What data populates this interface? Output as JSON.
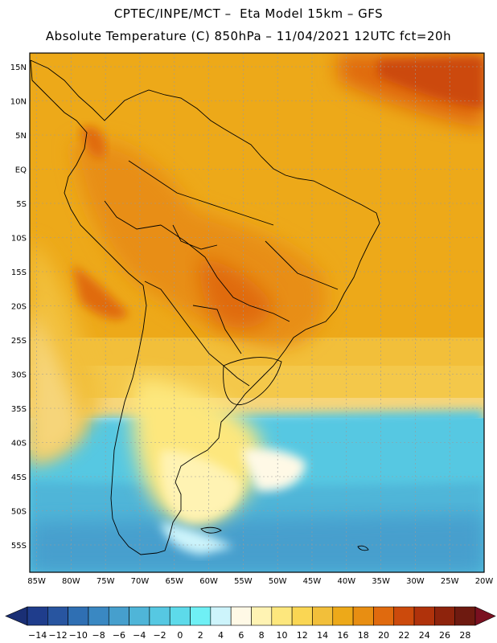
{
  "header": {
    "line1": "CPTEC/INPE/MCT –  Eta Model 15km – GFS",
    "line2": "Absolute Temperature (C) 850hPa – 11/04/2021 12UTC fct=20h"
  },
  "map": {
    "lon_range": [
      -86,
      -20
    ],
    "lat_range": [
      -59,
      17
    ],
    "lat_ticks": [
      "15N",
      "10N",
      "5N",
      "EQ",
      "5S",
      "10S",
      "15S",
      "20S",
      "25S",
      "30S",
      "35S",
      "40S",
      "45S",
      "50S",
      "55S"
    ],
    "lat_values": [
      15,
      10,
      5,
      0,
      -5,
      -10,
      -15,
      -20,
      -25,
      -30,
      -35,
      -40,
      -45,
      -50,
      -55
    ],
    "lon_ticks": [
      "85W",
      "80W",
      "75W",
      "70W",
      "65W",
      "60W",
      "55W",
      "50W",
      "45W",
      "40W",
      "35W",
      "30W",
      "25W",
      "20W"
    ],
    "lon_values": [
      -85,
      -80,
      -75,
      -70,
      -65,
      -60,
      -55,
      -50,
      -45,
      -40,
      -35,
      -30,
      -25,
      -20
    ],
    "grid": true
  },
  "colorbar": {
    "labels": [
      "-14",
      "-12",
      "-10",
      "-8",
      "-6",
      "-4",
      "-2",
      "0",
      "2",
      "4",
      "6",
      "8",
      "10",
      "12",
      "14",
      "16",
      "18",
      "20",
      "22",
      "24",
      "26",
      "28"
    ],
    "colors": [
      "#1f3d8c",
      "#2855a0",
      "#2f6fb3",
      "#3a88c2",
      "#469fcd",
      "#4fb5d8",
      "#56c8e2",
      "#5ddaea",
      "#6ff0f5",
      "#cdf4fb",
      "#fff9e6",
      "#fff3b3",
      "#fde77d",
      "#fad653",
      "#f2bf3a",
      "#eda919",
      "#e88e12",
      "#e06a0e",
      "#cc4a0c",
      "#b0320b",
      "#8e230c",
      "#6e1a10"
    ],
    "under_color": "#1a2f75",
    "over_color": "#7a1020"
  },
  "chart_data": {
    "type": "heatmap",
    "title": "Absolute Temperature (C) 850hPa",
    "variable": "Absolute Temperature (C)",
    "level": "850hPa",
    "model": "Eta Model 15km – GFS",
    "date": "11/04/2021 12UTC",
    "forecast": "fct=20h",
    "xlim": [
      -86,
      -20
    ],
    "ylim": [
      -59,
      17
    ],
    "scale_min": -14,
    "scale_max": 28
  }
}
